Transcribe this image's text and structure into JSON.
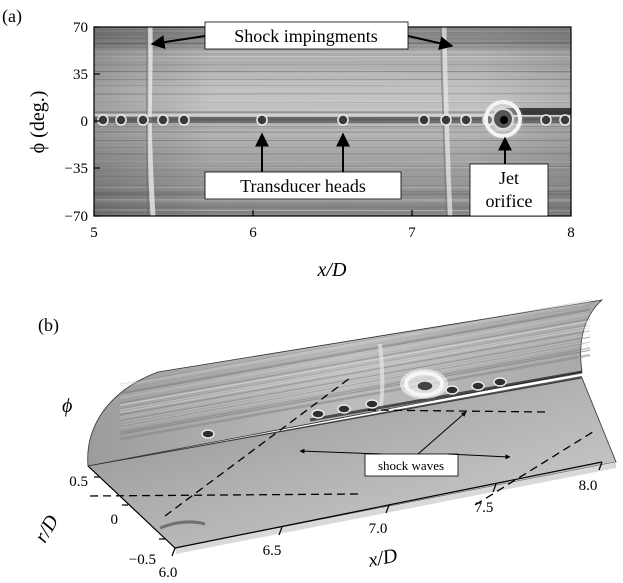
{
  "figure": {
    "panel_a": {
      "label": "(a)",
      "xlabel": "x/D",
      "ylabel": "ϕ (deg.)",
      "x_ticks": [
        "5",
        "6",
        "7",
        "8"
      ],
      "y_ticks": [
        "70",
        "35",
        "0",
        "−35",
        "−70"
      ],
      "annotations": {
        "shock": "Shock impingments",
        "transducer": "Transducer heads",
        "jet_line1": "Jet",
        "jet_line2": "orifice"
      }
    },
    "panel_b": {
      "label": "(b)",
      "phi_label": "ϕ",
      "r_label": "r/D",
      "x_label": "x/D",
      "r_ticks": [
        "0.5",
        "0",
        "−0.5"
      ],
      "x_ticks": [
        "6.0",
        "6.5",
        "7.0",
        "7.5",
        "8.0"
      ],
      "annotation": "shock waves"
    }
  },
  "chart_data": [
    {
      "type": "heatmap",
      "title": "",
      "xlabel": "x/D",
      "ylabel": "ϕ (deg.)",
      "xlim": [
        5,
        8
      ],
      "ylim": [
        -70,
        70
      ],
      "x_ticks": [
        5,
        6,
        7,
        8
      ],
      "y_ticks": [
        70,
        35,
        0,
        -35,
        -70
      ],
      "annotations": [
        "Shock impingments",
        "Transducer heads",
        "Jet orifice"
      ],
      "colormap": "grayscale"
    },
    {
      "type": "surface",
      "title": "",
      "axes": [
        "x/D",
        "r/D",
        "ϕ"
      ],
      "x_ticks": [
        6.0,
        6.5,
        7.0,
        7.5,
        8.0
      ],
      "r_ticks": [
        0.5,
        0,
        -0.5
      ],
      "annotations": [
        "shock waves"
      ]
    }
  ]
}
